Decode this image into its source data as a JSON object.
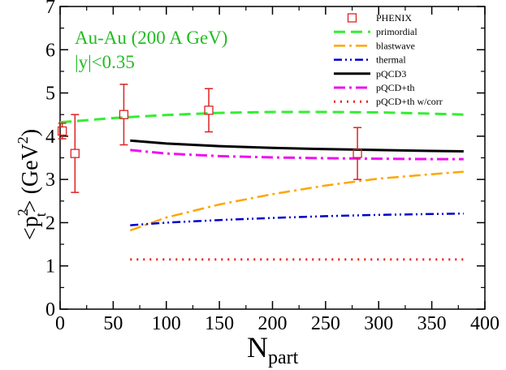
{
  "chart_data": {
    "type": "line",
    "title": "",
    "xlabel_main": "N",
    "xlabel_sub": "part",
    "ylabel": {
      "lt": "<",
      "p": "p",
      "p_sup": "2",
      "p_sub": "t",
      "gt": "> (GeV",
      "gev_sup": "2",
      "close": ")"
    },
    "xlim": [
      0,
      400
    ],
    "ylim": [
      0,
      7
    ],
    "xticks": [
      0,
      50,
      100,
      150,
      200,
      250,
      300,
      350,
      400
    ],
    "yticks": [
      0,
      1,
      2,
      3,
      4,
      5,
      6,
      7
    ],
    "grid": false,
    "legend_position": "top-right",
    "annotation": {
      "line1": "Au-Au (200 A GeV)",
      "line2": "|y|<0.35",
      "color": "#22bb22"
    },
    "data_points": {
      "name": "PHENIX",
      "color": "#dd2222",
      "points": [
        {
          "x": 2,
          "y": 4.12,
          "yerr": 0.18
        },
        {
          "x": 14,
          "y": 3.6,
          "yerr": 0.9
        },
        {
          "x": 60,
          "y": 4.5,
          "yerr": 0.7
        },
        {
          "x": 140,
          "y": 4.6,
          "yerr": 0.5
        },
        {
          "x": 280,
          "y": 3.6,
          "yerr": 0.6
        }
      ]
    },
    "series": [
      {
        "name": "primordial",
        "color": "#33ee33",
        "dash": "14,7",
        "width": 3,
        "x": [
          0,
          50,
          100,
          150,
          200,
          250,
          300,
          350,
          380
        ],
        "y": [
          4.32,
          4.42,
          4.49,
          4.54,
          4.56,
          4.56,
          4.55,
          4.52,
          4.5
        ]
      },
      {
        "name": "blastwave",
        "color": "#ffa500",
        "dash": "14,5,3,5",
        "width": 2.5,
        "x": [
          66,
          100,
          150,
          200,
          250,
          300,
          350,
          380
        ],
        "y": [
          1.82,
          2.12,
          2.42,
          2.66,
          2.86,
          3.02,
          3.12,
          3.18
        ]
      },
      {
        "name": "thermal",
        "color": "#0000cc",
        "dash": "10,4,2,4,2,4",
        "width": 2.5,
        "x": [
          66,
          100,
          150,
          200,
          250,
          300,
          350,
          380
        ],
        "y": [
          1.94,
          2.0,
          2.06,
          2.11,
          2.15,
          2.18,
          2.2,
          2.21
        ]
      },
      {
        "name": "pQCD3",
        "color": "#000000",
        "dash": "",
        "width": 3,
        "x": [
          66,
          100,
          150,
          200,
          250,
          300,
          350,
          380
        ],
        "y": [
          3.9,
          3.83,
          3.77,
          3.73,
          3.7,
          3.68,
          3.66,
          3.65
        ]
      },
      {
        "name": "pQCD+th",
        "color": "#ee11ee",
        "dash": "14,5,3,5",
        "width": 3,
        "x": [
          66,
          100,
          150,
          200,
          250,
          300,
          350,
          380
        ],
        "y": [
          3.68,
          3.6,
          3.54,
          3.51,
          3.49,
          3.48,
          3.47,
          3.47
        ]
      },
      {
        "name": "pQCD+th w/corr",
        "color": "#ee2222",
        "dash": "2,6",
        "width": 3,
        "x": [
          66,
          100,
          150,
          200,
          250,
          300,
          350,
          380
        ],
        "y": [
          1.15,
          1.15,
          1.15,
          1.15,
          1.15,
          1.15,
          1.15,
          1.15
        ]
      }
    ]
  }
}
